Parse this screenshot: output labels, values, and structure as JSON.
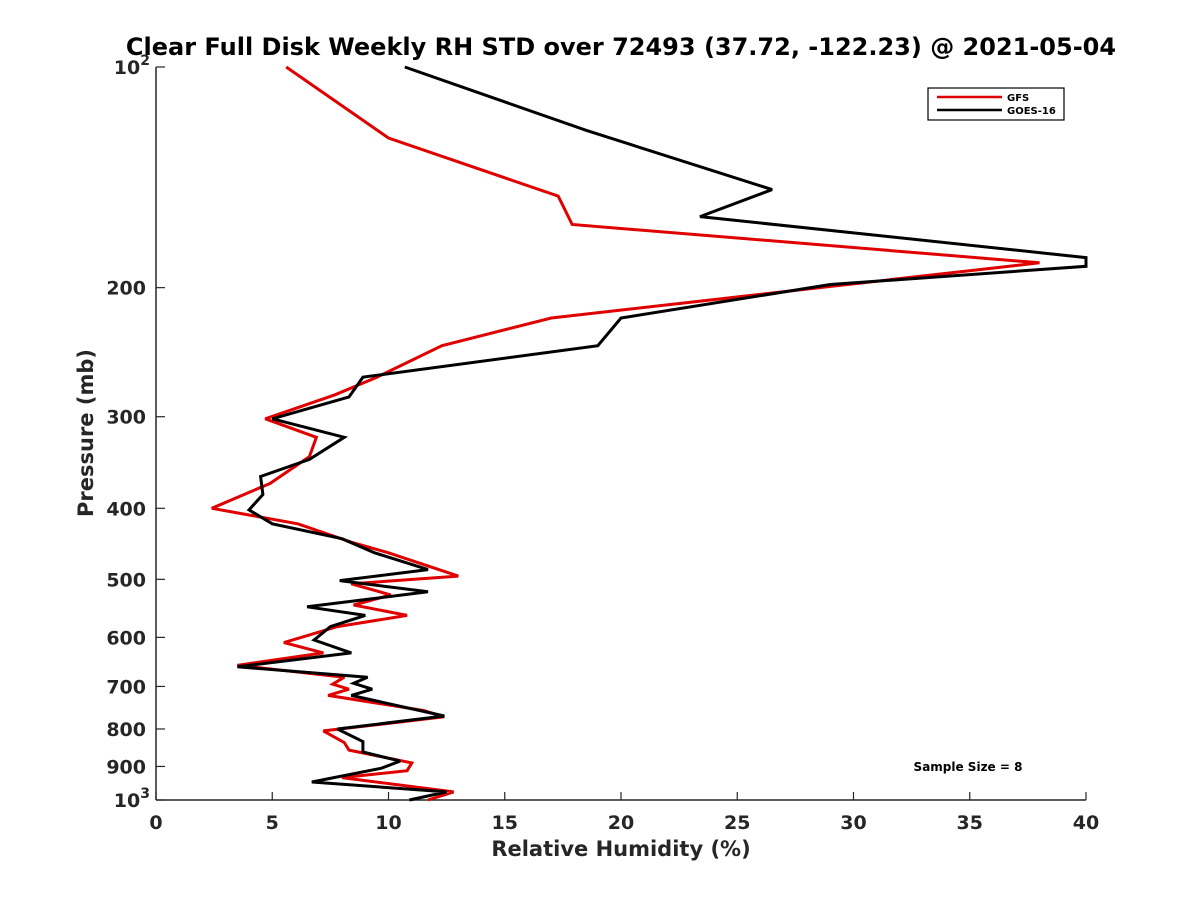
{
  "chart_data": {
    "type": "line",
    "title": "Clear Full Disk Weekly RH STD over 72493 (37.72, -122.23) @ 2021-05-04",
    "xlabel": "Relative Humidity (%)",
    "ylabel": "Pressure (mb)",
    "xlim": [
      0,
      40
    ],
    "ylim": [
      1000,
      100
    ],
    "y_scale": "log",
    "x_ticks": [
      "0",
      "5",
      "10",
      "15",
      "20",
      "25",
      "30",
      "35",
      "40"
    ],
    "y_ticks": [
      {
        "value": 100,
        "label": "10",
        "sup": "2"
      },
      {
        "value": 200,
        "label": "200",
        "sup": ""
      },
      {
        "value": 300,
        "label": "300",
        "sup": ""
      },
      {
        "value": 400,
        "label": "400",
        "sup": ""
      },
      {
        "value": 500,
        "label": "500",
        "sup": ""
      },
      {
        "value": 600,
        "label": "600",
        "sup": ""
      },
      {
        "value": 700,
        "label": "700",
        "sup": ""
      },
      {
        "value": 800,
        "label": "800",
        "sup": ""
      },
      {
        "value": 900,
        "label": "900",
        "sup": ""
      },
      {
        "value": 1000,
        "label": "10",
        "sup": "3"
      }
    ],
    "grid": false,
    "legend": "top-right",
    "annotation": "Sample Size = 8",
    "series": [
      {
        "name": "GFS",
        "color": "#e00000",
        "points": [
          [
            5.6,
            100
          ],
          [
            10.0,
            125
          ],
          [
            17.3,
            150
          ],
          [
            17.9,
            164
          ],
          [
            38.0,
            185
          ],
          [
            17.0,
            220
          ],
          [
            12.3,
            240
          ],
          [
            9.5,
            265
          ],
          [
            7.7,
            280
          ],
          [
            4.7,
            302
          ],
          [
            6.9,
            320
          ],
          [
            6.6,
            340
          ],
          [
            4.9,
            370
          ],
          [
            2.4,
            400
          ],
          [
            6.1,
            420
          ],
          [
            8.4,
            445
          ],
          [
            10.0,
            460
          ],
          [
            13.0,
            495
          ],
          [
            8.4,
            507
          ],
          [
            10.1,
            525
          ],
          [
            8.5,
            542
          ],
          [
            10.8,
            560
          ],
          [
            7.8,
            580
          ],
          [
            5.5,
            610
          ],
          [
            7.2,
            630
          ],
          [
            3.5,
            655
          ],
          [
            8.1,
            680
          ],
          [
            7.6,
            695
          ],
          [
            8.3,
            706
          ],
          [
            7.4,
            720
          ],
          [
            11.5,
            755
          ],
          [
            12.4,
            770
          ],
          [
            7.2,
            805
          ],
          [
            8.1,
            835
          ],
          [
            8.3,
            855
          ],
          [
            11.0,
            890
          ],
          [
            10.8,
            912
          ],
          [
            8.0,
            932
          ],
          [
            12.8,
            975
          ],
          [
            11.7,
            1000
          ]
        ]
      },
      {
        "name": "GOES-16",
        "color": "#000000",
        "points": [
          [
            10.7,
            100
          ],
          [
            18.5,
            122
          ],
          [
            26.5,
            147
          ],
          [
            23.4,
            160
          ],
          [
            40.0,
            182
          ],
          [
            40.0,
            187
          ],
          [
            29.0,
            198
          ],
          [
            20.0,
            220
          ],
          [
            19.0,
            240
          ],
          [
            8.9,
            265
          ],
          [
            8.3,
            282
          ],
          [
            5.0,
            302
          ],
          [
            8.1,
            320
          ],
          [
            6.6,
            343
          ],
          [
            4.5,
            362
          ],
          [
            4.6,
            383
          ],
          [
            4.0,
            402
          ],
          [
            5.0,
            420
          ],
          [
            8.0,
            440
          ],
          [
            9.4,
            460
          ],
          [
            11.7,
            485
          ],
          [
            7.9,
            502
          ],
          [
            11.7,
            520
          ],
          [
            6.5,
            545
          ],
          [
            9.0,
            560
          ],
          [
            7.5,
            580
          ],
          [
            6.8,
            605
          ],
          [
            8.4,
            630
          ],
          [
            3.5,
            658
          ],
          [
            9.1,
            680
          ],
          [
            8.5,
            693
          ],
          [
            9.3,
            706
          ],
          [
            8.4,
            720
          ],
          [
            12.4,
            768
          ],
          [
            7.8,
            800
          ],
          [
            8.9,
            832
          ],
          [
            8.9,
            860
          ],
          [
            10.5,
            885
          ],
          [
            9.7,
            905
          ],
          [
            6.7,
            945
          ],
          [
            12.5,
            975
          ],
          [
            10.9,
            1000
          ]
        ]
      }
    ]
  }
}
